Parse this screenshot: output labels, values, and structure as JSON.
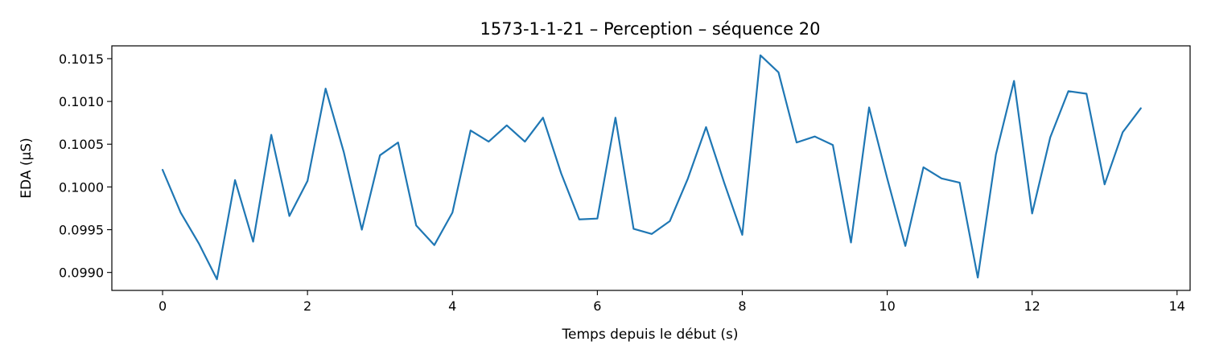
{
  "chart_data": {
    "type": "line",
    "title": "1573-1-1-21 – Perception – séquence 20",
    "xlabel": "Temps depuis le début (s)",
    "ylabel": "EDA (µS)",
    "xlim": [
      -0.7,
      14.18
    ],
    "ylim": [
      0.09879,
      0.10165
    ],
    "xticks": [
      0,
      2,
      4,
      6,
      8,
      10,
      12,
      14
    ],
    "xtick_labels": [
      "0",
      "2",
      "4",
      "6",
      "8",
      "10",
      "12",
      "14"
    ],
    "yticks": [
      0.099,
      0.0995,
      0.1,
      0.1005,
      0.101,
      0.1015
    ],
    "ytick_labels": [
      "0.0990",
      "0.0995",
      "0.1000",
      "0.1005",
      "0.1010",
      "0.1015"
    ],
    "grid": false,
    "series": [
      {
        "color": "#1f77b4",
        "x": [
          0,
          0.25,
          0.5,
          0.75,
          1,
          1.25,
          1.5,
          1.75,
          2,
          2.25,
          2.5,
          2.75,
          3,
          3.25,
          3.5,
          3.75,
          4,
          4.25,
          4.5,
          4.75,
          5,
          5.25,
          5.5,
          5.75,
          6,
          6.25,
          6.5,
          6.75,
          7,
          7.25,
          7.5,
          7.75,
          8,
          8.25,
          8.5,
          8.75,
          9,
          9.25,
          9.5,
          9.75,
          10,
          10.25,
          10.5,
          10.75,
          11,
          11.25,
          11.5,
          11.75,
          12,
          12.25,
          12.5,
          12.75,
          13,
          13.25,
          13.5
        ],
        "y": [
          0.1002,
          0.0997,
          0.09934,
          0.09892,
          0.10008,
          0.09936,
          0.10061,
          0.09966,
          0.10007,
          0.10115,
          0.10041,
          0.0995,
          0.10037,
          0.10052,
          0.09955,
          0.09932,
          0.0997,
          0.10066,
          0.10053,
          0.10072,
          0.10053,
          0.10081,
          0.10016,
          0.09962,
          0.09963,
          0.10081,
          0.09951,
          0.09945,
          0.0996,
          0.1001,
          0.1007,
          0.10005,
          0.09944,
          0.10154,
          0.10134,
          0.10052,
          0.10059,
          0.10049,
          0.09935,
          0.10093,
          0.1001,
          0.09931,
          0.10023,
          0.1001,
          0.10005,
          0.09894,
          0.10038,
          0.10124,
          0.09969,
          0.10058,
          0.10112,
          0.10109,
          0.10003,
          0.10064,
          0.10092
        ]
      }
    ]
  }
}
